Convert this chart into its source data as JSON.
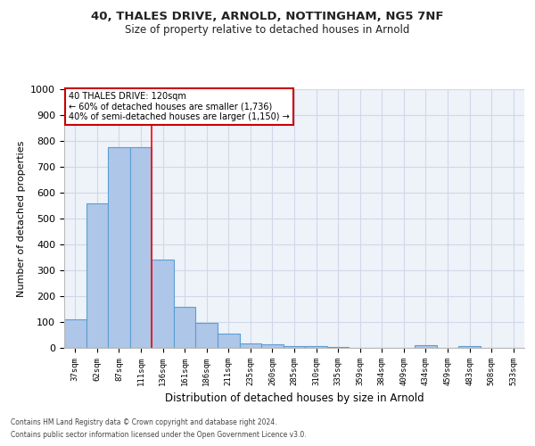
{
  "title_line1": "40, THALES DRIVE, ARNOLD, NOTTINGHAM, NG5 7NF",
  "title_line2": "Size of property relative to detached houses in Arnold",
  "xlabel": "Distribution of detached houses by size in Arnold",
  "ylabel": "Number of detached properties",
  "categories": [
    "37sqm",
    "62sqm",
    "87sqm",
    "111sqm",
    "136sqm",
    "161sqm",
    "186sqm",
    "211sqm",
    "235sqm",
    "260sqm",
    "285sqm",
    "310sqm",
    "335sqm",
    "359sqm",
    "384sqm",
    "409sqm",
    "434sqm",
    "459sqm",
    "483sqm",
    "508sqm",
    "533sqm"
  ],
  "values": [
    110,
    558,
    775,
    775,
    340,
    160,
    98,
    55,
    17,
    13,
    8,
    7,
    5,
    1,
    0,
    0,
    10,
    0,
    8,
    0,
    0
  ],
  "bar_color": "#aec6e8",
  "bar_edge_color": "#5a9fd4",
  "grid_color": "#d0d8e8",
  "background_color": "#eef2f9",
  "red_line_x": 3.5,
  "annotation_text": "40 THALES DRIVE: 120sqm\n← 60% of detached houses are smaller (1,736)\n40% of semi-detached houses are larger (1,150) →",
  "annotation_box_color": "#ffffff",
  "annotation_box_edge_color": "#cc0000",
  "ylim": [
    0,
    1000
  ],
  "yticks": [
    0,
    100,
    200,
    300,
    400,
    500,
    600,
    700,
    800,
    900,
    1000
  ],
  "footer_line1": "Contains HM Land Registry data © Crown copyright and database right 2024.",
  "footer_line2": "Contains public sector information licensed under the Open Government Licence v3.0."
}
